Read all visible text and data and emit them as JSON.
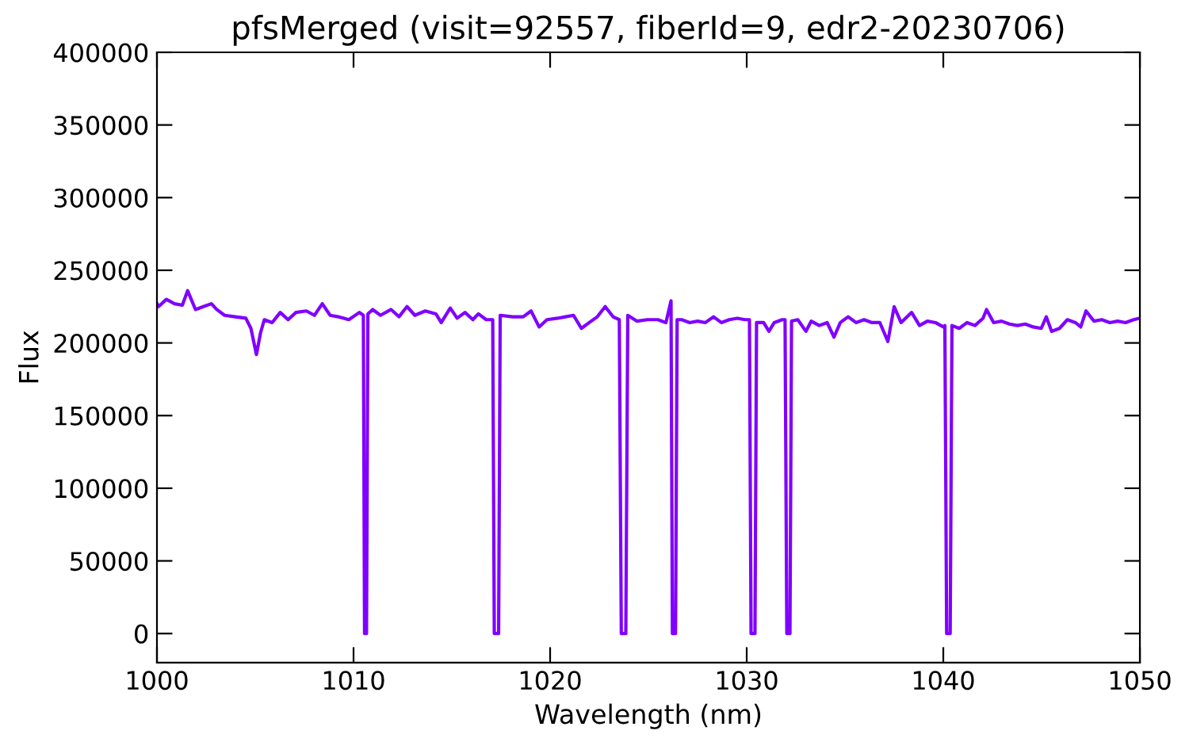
{
  "chart_data": {
    "type": "line",
    "title": "pfsMerged (visit=92557, fiberId=9, edr2-20230706)",
    "xlabel": "Wavelength (nm)",
    "ylabel": "Flux",
    "x": [
      1000.0,
      1000.08,
      1000.48,
      1000.89,
      1001.29,
      1001.56,
      1001.96,
      1002.36,
      1002.77,
      1003.04,
      1003.44,
      1003.98,
      1004.52,
      1004.78,
      1005.06,
      1005.27,
      1005.46,
      1005.86,
      1006.27,
      1006.67,
      1007.07,
      1007.6,
      1008.01,
      1008.41,
      1008.81,
      1009.22,
      1009.76,
      1010.3,
      1010.5,
      1010.56,
      1010.66,
      1010.73,
      1010.97,
      1011.37,
      1011.91,
      1012.31,
      1012.72,
      1013.12,
      1013.65,
      1014.19,
      1014.46,
      1014.92,
      1015.27,
      1015.67,
      1016.07,
      1016.35,
      1016.75,
      1017.08,
      1017.16,
      1017.38,
      1017.46,
      1018.09,
      1018.63,
      1019.03,
      1019.44,
      1019.84,
      1020.38,
      1020.78,
      1021.19,
      1021.59,
      1021.99,
      1022.4,
      1022.8,
      1023.2,
      1023.52,
      1023.62,
      1023.85,
      1023.95,
      1024.41,
      1024.94,
      1025.48,
      1025.89,
      1026.15,
      1026.22,
      1026.38,
      1026.46,
      1026.69,
      1027.1,
      1027.5,
      1027.9,
      1028.31,
      1028.71,
      1029.11,
      1029.52,
      1029.92,
      1030.14,
      1030.22,
      1030.42,
      1030.5,
      1030.86,
      1031.13,
      1031.4,
      1031.8,
      1031.95,
      1032.04,
      1032.2,
      1032.28,
      1032.6,
      1033.01,
      1033.28,
      1033.69,
      1034.09,
      1034.44,
      1034.76,
      1035.16,
      1035.56,
      1035.97,
      1036.37,
      1036.77,
      1037.18,
      1037.5,
      1037.85,
      1038.39,
      1038.79,
      1039.19,
      1039.6,
      1040.0,
      1040.08,
      1040.17,
      1040.35,
      1040.44,
      1040.81,
      1041.21,
      1041.61,
      1042.02,
      1042.2,
      1042.56,
      1042.96,
      1043.36,
      1043.77,
      1044.17,
      1044.57,
      1044.98,
      1045.24,
      1045.51,
      1045.91,
      1046.31,
      1046.72,
      1046.99,
      1047.26,
      1047.66,
      1048.06,
      1048.47,
      1048.87,
      1049.27,
      1049.68,
      1050.0
    ],
    "series": [
      {
        "color": "#8000ff",
        "values": [
          227000,
          225000,
          230000,
          227000,
          226000,
          236000,
          223000,
          225000,
          227000,
          223000,
          219000,
          218000,
          217000,
          210000,
          192000,
          207000,
          216000,
          214000,
          221000,
          216000,
          221000,
          222000,
          219000,
          227000,
          219000,
          218000,
          216000,
          221000,
          219000,
          0,
          0,
          220000,
          223000,
          219000,
          223000,
          218000,
          225000,
          219000,
          222000,
          220000,
          214000,
          224000,
          217000,
          221000,
          216000,
          220000,
          216000,
          216000,
          0,
          0,
          219000,
          218000,
          218000,
          222000,
          211000,
          216000,
          217000,
          218000,
          219000,
          210000,
          214000,
          218000,
          225000,
          218000,
          216000,
          0,
          0,
          219000,
          215000,
          216000,
          216000,
          214000,
          229000,
          0,
          0,
          216000,
          216000,
          214000,
          215000,
          214000,
          218000,
          214000,
          216000,
          217000,
          216000,
          216000,
          0,
          0,
          214000,
          214000,
          208000,
          214000,
          216000,
          216000,
          0,
          0,
          215000,
          216000,
          208000,
          215000,
          212000,
          214000,
          204000,
          214000,
          218000,
          214000,
          216000,
          214000,
          214000,
          201000,
          225000,
          214000,
          221000,
          212000,
          215000,
          214000,
          211000,
          212000,
          0,
          0,
          212000,
          210000,
          214000,
          212000,
          217000,
          223000,
          214000,
          215000,
          213000,
          212000,
          213000,
          211000,
          210000,
          218000,
          208000,
          210000,
          216000,
          214000,
          211000,
          222000,
          215000,
          216000,
          214000,
          215000,
          214000,
          216000,
          217000
        ]
      }
    ],
    "xlim": [
      1000,
      1050
    ],
    "ylim": [
      -20000,
      400000
    ],
    "xticks": [
      1000,
      1010,
      1020,
      1030,
      1040,
      1050
    ],
    "yticks": [
      0,
      50000,
      100000,
      150000,
      200000,
      250000,
      300000,
      350000,
      400000
    ]
  }
}
